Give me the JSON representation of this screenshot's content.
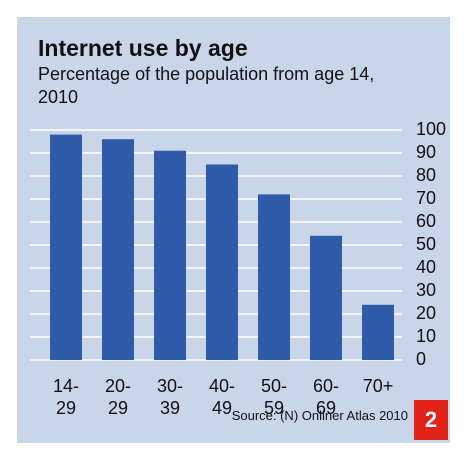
{
  "title": "Internet use by age",
  "subtitle": "Percentage of the population from age 14, 2010",
  "source": "Source: (N) Onliner Atlas 2010",
  "badge": "2",
  "chart_data": {
    "type": "bar",
    "categories": [
      "14-29",
      "20-29",
      "30-39",
      "40-49",
      "50-59",
      "60-69",
      "70+"
    ],
    "values": [
      98,
      96,
      91,
      85,
      72,
      54,
      24
    ],
    "color": "#2f5ba9",
    "ylim": [
      0,
      100
    ],
    "yticks": [
      0,
      10,
      20,
      30,
      40,
      50,
      60,
      70,
      80,
      90,
      100
    ],
    "grid": true
  }
}
